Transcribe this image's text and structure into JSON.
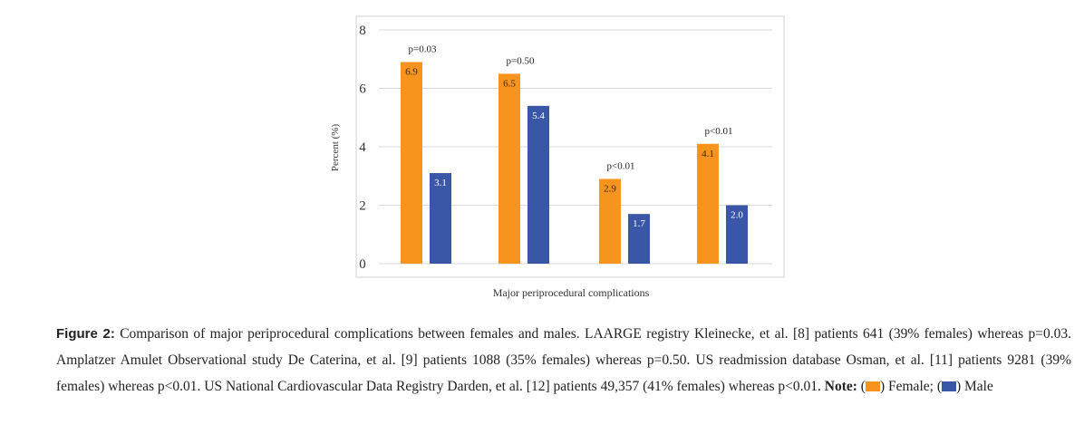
{
  "chart_data": {
    "type": "bar",
    "title": "",
    "xlabel": "Major periprocedural complications",
    "ylabel": "Percent (%)",
    "ylim": [
      0,
      8
    ],
    "yticks": [
      "0",
      "2",
      "4",
      "6",
      "8"
    ],
    "grid": true,
    "series": [
      {
        "name": "Female",
        "color": "#F7941D",
        "values": [
          6.9,
          6.5,
          2.9,
          4.1
        ],
        "labels": [
          "6.9",
          "6.5",
          "2.9",
          "4.1"
        ]
      },
      {
        "name": "Male",
        "color": "#3A57A7",
        "values": [
          3.1,
          5.4,
          1.7,
          2.0
        ],
        "labels": [
          "3.1",
          "5.4",
          "1.7",
          "2.0"
        ]
      }
    ],
    "annotations": [
      "p=0.03",
      "p=0.50",
      "p<0.01",
      "p<0.01"
    ]
  },
  "caption": {
    "label": "Figure 2:",
    "text": " Comparison of major periprocedural complications between females and males. LAARGE registry Kleinecke, et al. [8] patients 641 (39% females) whereas p=0.03. Amplatzer Amulet Observational study De Caterina, et al. [9] patients 1088 (35% females) whereas p=0.50. US readmission database Osman, et al. [11] patients 9281 (39% females) whereas p<0.01. US National Cardiovascular Data Registry Darden, et al. [12] patients 49,357 (41% females) whereas p<0.01.",
    "note_label": "Note:",
    "open1": " (",
    "female_label": ") Female;",
    "open2": "(",
    "male_label": ") Male"
  }
}
